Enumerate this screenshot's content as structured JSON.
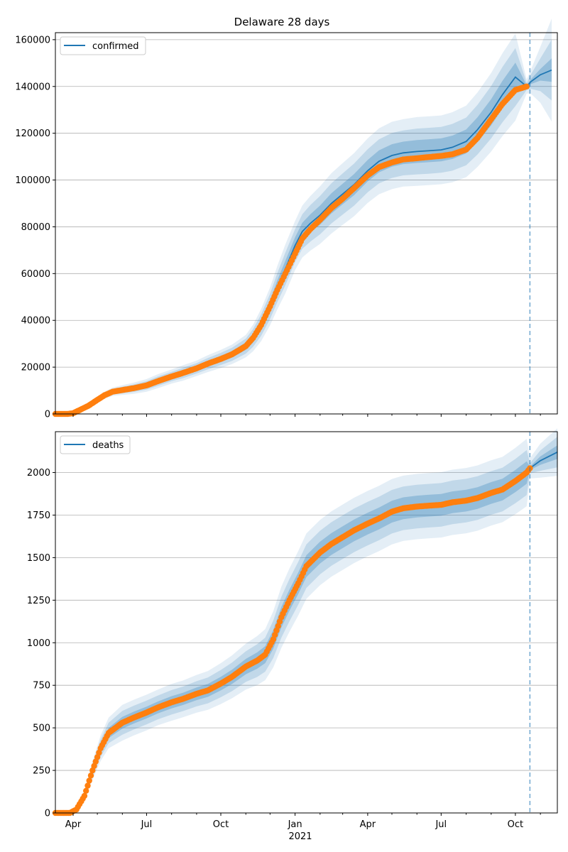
{
  "chart_data": [
    {
      "type": "line",
      "title": "Delaware 28 days",
      "legend": {
        "label": "confirmed",
        "placement": "top-left"
      },
      "grid": "y-only",
      "ylim": [
        0,
        163000
      ],
      "yticks": [
        0,
        20000,
        40000,
        60000,
        80000,
        100000,
        120000,
        140000,
        160000
      ],
      "ytick_labels": [
        "0",
        "20000",
        "40000",
        "60000",
        "80000",
        "100000",
        "120000",
        "140000",
        "160000"
      ],
      "observed": {
        "color": "#ff7f0e",
        "x": [
          "2020-03-10",
          "2020-03-25",
          "2020-04-01",
          "2020-04-10",
          "2020-04-20",
          "2020-05-01",
          "2020-05-10",
          "2020-05-20",
          "2020-06-01",
          "2020-06-15",
          "2020-07-01",
          "2020-07-15",
          "2020-08-01",
          "2020-08-15",
          "2020-09-01",
          "2020-09-15",
          "2020-10-01",
          "2020-10-15",
          "2020-11-01",
          "2020-11-10",
          "2020-11-20",
          "2020-12-01",
          "2020-12-10",
          "2020-12-20",
          "2021-01-01",
          "2021-01-10",
          "2021-01-20",
          "2021-02-01",
          "2021-02-15",
          "2021-03-01",
          "2021-03-15",
          "2021-04-01",
          "2021-04-15",
          "2021-05-01",
          "2021-05-15",
          "2021-06-01",
          "2021-06-15",
          "2021-07-01",
          "2021-07-15",
          "2021-08-01",
          "2021-08-15",
          "2021-09-01",
          "2021-09-15",
          "2021-10-01",
          "2021-10-15"
        ],
        "y": [
          0,
          0,
          300,
          1800,
          3500,
          6000,
          8000,
          9500,
          10200,
          11000,
          12200,
          14000,
          16000,
          17500,
          19500,
          21500,
          23500,
          25500,
          29000,
          32500,
          38000,
          46000,
          53000,
          60000,
          68500,
          75000,
          79000,
          83000,
          88000,
          92000,
          96500,
          102000,
          105500,
          107500,
          108800,
          109300,
          109800,
          110300,
          111000,
          113000,
          118000,
          126000,
          132500,
          138500,
          140000
        ]
      },
      "model": {
        "color": "#1f77b4",
        "x": [
          "2020-03-10",
          "2020-03-25",
          "2020-04-01",
          "2020-04-10",
          "2020-04-20",
          "2020-05-01",
          "2020-05-10",
          "2020-05-20",
          "2020-06-01",
          "2020-06-15",
          "2020-07-01",
          "2020-07-15",
          "2020-08-01",
          "2020-08-15",
          "2020-09-01",
          "2020-09-15",
          "2020-10-01",
          "2020-10-15",
          "2020-11-01",
          "2020-11-10",
          "2020-11-20",
          "2020-12-01",
          "2020-12-10",
          "2020-12-20",
          "2021-01-01",
          "2021-01-10",
          "2021-01-20",
          "2021-02-01",
          "2021-02-15",
          "2021-03-01",
          "2021-03-15",
          "2021-04-01",
          "2021-04-15",
          "2021-05-01",
          "2021-05-15",
          "2021-06-01",
          "2021-06-15",
          "2021-07-01",
          "2021-07-15",
          "2021-08-01",
          "2021-08-15",
          "2021-09-01",
          "2021-09-15",
          "2021-10-01",
          "2021-10-15",
          "2021-10-20",
          "2021-11-01",
          "2021-11-15"
        ],
        "y": [
          0,
          0,
          300,
          1800,
          3500,
          6000,
          8000,
          9500,
          10200,
          11000,
          12200,
          14000,
          16000,
          17500,
          19500,
          21500,
          23500,
          25500,
          29000,
          32500,
          38000,
          46000,
          54000,
          62000,
          72000,
          78000,
          81500,
          85000,
          90000,
          94000,
          98000,
          104000,
          108000,
          110500,
          111600,
          112200,
          112500,
          112900,
          114000,
          116500,
          121500,
          129000,
          136500,
          144000,
          140000,
          142000,
          145000,
          147000
        ],
        "band_widths": [
          [
            0,
            0,
            50,
            150,
            300,
            400,
            500,
            600,
            700,
            800,
            900,
            1000,
            1000,
            1100,
            1100,
            1200,
            1300,
            1400,
            1600,
            1900,
            2300,
            2700,
            3100,
            3500,
            3500,
            3700,
            3900,
            4100,
            4300,
            4400,
            4500,
            4600,
            4700,
            4800,
            4800,
            4900,
            4900,
            4900,
            5000,
            5100,
            5300,
            5600,
            5900,
            6200,
            500,
            1000,
            2500,
            5000
          ],
          [
            0,
            0,
            100,
            300,
            600,
            800,
            1000,
            1200,
            1400,
            1600,
            1800,
            2000,
            2000,
            2200,
            2200,
            2400,
            2600,
            2800,
            3200,
            3800,
            4600,
            5400,
            6200,
            7000,
            7000,
            7400,
            7800,
            8200,
            8600,
            8800,
            9000,
            9200,
            9400,
            9600,
            9600,
            9800,
            9800,
            9800,
            10000,
            10200,
            10600,
            11200,
            11800,
            12400,
            1500,
            3000,
            7000,
            13000
          ],
          [
            0,
            0,
            150,
            450,
            900,
            1200,
            1500,
            1800,
            2100,
            2400,
            2700,
            3000,
            3000,
            3300,
            3300,
            3600,
            3900,
            4200,
            4800,
            5700,
            6900,
            8100,
            9300,
            10500,
            10500,
            11100,
            11700,
            12300,
            12900,
            13200,
            13500,
            13800,
            14100,
            14400,
            14400,
            14700,
            14700,
            14700,
            15000,
            15300,
            15900,
            16800,
            17700,
            18600,
            3000,
            5000,
            12000,
            22000
          ]
        ]
      },
      "forecast_start": "2021-10-19"
    },
    {
      "type": "line",
      "legend": {
        "label": "deaths",
        "placement": "top-left"
      },
      "grid": "y-only",
      "ylim": [
        0,
        2240
      ],
      "yticks": [
        0,
        250,
        500,
        750,
        1000,
        1250,
        1500,
        1750,
        2000
      ],
      "ytick_labels": [
        "0",
        "250",
        "500",
        "750",
        "1000",
        "1250",
        "1500",
        "1750",
        "2000"
      ],
      "xtick_labels": [
        "Apr",
        "Jul",
        "Oct",
        "Jan",
        "Apr",
        "Jul",
        "Oct"
      ],
      "xtick_dates": [
        "2020-04-01",
        "2020-07-01",
        "2020-10-01",
        "2021-01-01",
        "2021-04-01",
        "2021-07-01",
        "2021-10-01"
      ],
      "x_sublabel": "2021",
      "xlim": [
        "2020-03-10",
        "2021-11-22"
      ],
      "observed": {
        "color": "#ff7f0e",
        "x": [
          "2020-03-10",
          "2020-03-28",
          "2020-04-05",
          "2020-04-15",
          "2020-04-25",
          "2020-05-05",
          "2020-05-15",
          "2020-06-01",
          "2020-06-15",
          "2020-07-01",
          "2020-07-15",
          "2020-08-01",
          "2020-08-15",
          "2020-09-01",
          "2020-09-15",
          "2020-10-01",
          "2020-10-15",
          "2020-11-01",
          "2020-11-15",
          "2020-11-25",
          "2020-12-05",
          "2020-12-15",
          "2020-12-25",
          "2021-01-05",
          "2021-01-15",
          "2021-02-01",
          "2021-02-15",
          "2021-03-01",
          "2021-03-15",
          "2021-04-01",
          "2021-04-15",
          "2021-05-01",
          "2021-05-15",
          "2021-06-01",
          "2021-06-15",
          "2021-07-01",
          "2021-07-15",
          "2021-08-01",
          "2021-08-15",
          "2021-09-01",
          "2021-09-15",
          "2021-10-01",
          "2021-10-15",
          "2021-10-19"
        ],
        "y": [
          0,
          0,
          20,
          100,
          250,
          380,
          470,
          530,
          560,
          590,
          620,
          650,
          670,
          700,
          720,
          760,
          800,
          860,
          895,
          930,
          1020,
          1150,
          1250,
          1350,
          1450,
          1530,
          1580,
          1620,
          1660,
          1700,
          1730,
          1770,
          1790,
          1800,
          1805,
          1810,
          1825,
          1835,
          1850,
          1880,
          1900,
          1950,
          2000,
          2025
        ]
      },
      "model": {
        "color": "#1f77b4",
        "x": [
          "2020-03-10",
          "2020-03-28",
          "2020-04-05",
          "2020-04-15",
          "2020-04-25",
          "2020-05-05",
          "2020-05-15",
          "2020-06-01",
          "2020-06-15",
          "2020-07-01",
          "2020-07-15",
          "2020-08-01",
          "2020-08-15",
          "2020-09-01",
          "2020-09-15",
          "2020-10-01",
          "2020-10-15",
          "2020-11-01",
          "2020-11-15",
          "2020-11-25",
          "2020-12-05",
          "2020-12-15",
          "2020-12-25",
          "2021-01-05",
          "2021-01-15",
          "2021-02-01",
          "2021-02-15",
          "2021-03-01",
          "2021-03-15",
          "2021-04-01",
          "2021-04-15",
          "2021-05-01",
          "2021-05-15",
          "2021-06-01",
          "2021-06-15",
          "2021-07-01",
          "2021-07-15",
          "2021-08-01",
          "2021-08-15",
          "2021-09-01",
          "2021-09-15",
          "2021-10-01",
          "2021-10-15",
          "2021-10-19",
          "2021-11-01",
          "2021-11-22"
        ],
        "y": [
          0,
          0,
          20,
          100,
          250,
          380,
          470,
          530,
          560,
          590,
          620,
          650,
          670,
          700,
          720,
          760,
          800,
          860,
          895,
          930,
          1020,
          1150,
          1250,
          1350,
          1450,
          1530,
          1580,
          1620,
          1660,
          1700,
          1730,
          1770,
          1790,
          1800,
          1805,
          1810,
          1825,
          1835,
          1850,
          1880,
          1900,
          1950,
          2000,
          2025,
          2070,
          2120
        ],
        "band_widths": [
          [
            0,
            0,
            5,
            10,
            18,
            25,
            30,
            35,
            35,
            35,
            35,
            36,
            36,
            37,
            38,
            40,
            42,
            45,
            48,
            50,
            55,
            60,
            62,
            63,
            64,
            64,
            64,
            64,
            64,
            64,
            64,
            64,
            64,
            64,
            64,
            64,
            64,
            64,
            64,
            64,
            64,
            65,
            66,
            10,
            25,
            40
          ],
          [
            0,
            0,
            10,
            20,
            36,
            50,
            60,
            70,
            70,
            70,
            70,
            72,
            72,
            74,
            76,
            80,
            84,
            90,
            96,
            100,
            110,
            120,
            124,
            126,
            128,
            128,
            128,
            128,
            128,
            128,
            128,
            128,
            128,
            128,
            128,
            128,
            128,
            128,
            128,
            128,
            128,
            130,
            132,
            30,
            60,
            90
          ],
          [
            0,
            0,
            15,
            30,
            54,
            75,
            90,
            105,
            105,
            105,
            105,
            108,
            108,
            111,
            114,
            120,
            126,
            135,
            144,
            150,
            165,
            180,
            186,
            189,
            192,
            192,
            192,
            192,
            192,
            192,
            192,
            192,
            192,
            192,
            192,
            192,
            192,
            192,
            192,
            192,
            192,
            195,
            198,
            60,
            100,
            140
          ]
        ]
      },
      "forecast_start": "2021-10-19"
    }
  ]
}
